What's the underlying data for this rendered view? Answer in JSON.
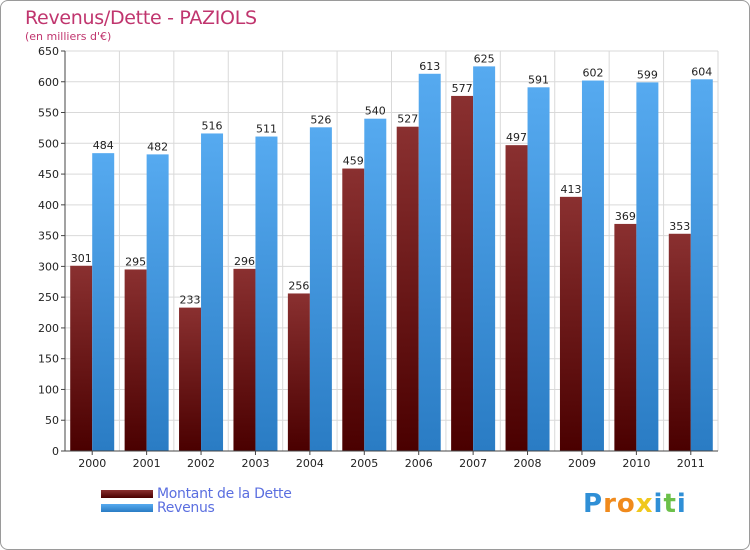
{
  "header": {
    "title": "Revenus/Dette - PAZIOLS",
    "subtitle": "(en milliers d'€)"
  },
  "chart_data": {
    "type": "bar",
    "title": "Revenus/Dette - PAZIOLS",
    "subtitle": "(en milliers d'€)",
    "categories": [
      "2000",
      "2001",
      "2002",
      "2003",
      "2004",
      "2005",
      "2006",
      "2007",
      "2008",
      "2009",
      "2010",
      "2011"
    ],
    "series": [
      {
        "name": "Montant de la Dette",
        "color": "#6e1414",
        "values": [
          301,
          295,
          233,
          296,
          256,
          459,
          527,
          577,
          497,
          413,
          369,
          353
        ]
      },
      {
        "name": "Revenus",
        "color": "#3f95dc",
        "values": [
          484,
          482,
          516,
          511,
          526,
          540,
          613,
          625,
          591,
          602,
          599,
          604
        ]
      }
    ],
    "ylim": [
      0,
      650
    ],
    "yticks": [
      0,
      50,
      100,
      150,
      200,
      250,
      300,
      350,
      400,
      450,
      500,
      550,
      600,
      650
    ],
    "grid": true,
    "legend": "bottom-left"
  },
  "logo": {
    "letters": [
      "P",
      "r",
      "o",
      "x",
      "i",
      "t",
      "i"
    ],
    "colors": [
      "#2f8fd6",
      "#f08a1c",
      "#f08a1c",
      "#f0c81c",
      "#2f8fd6",
      "#6cc04a",
      "#2f8fd6"
    ]
  }
}
